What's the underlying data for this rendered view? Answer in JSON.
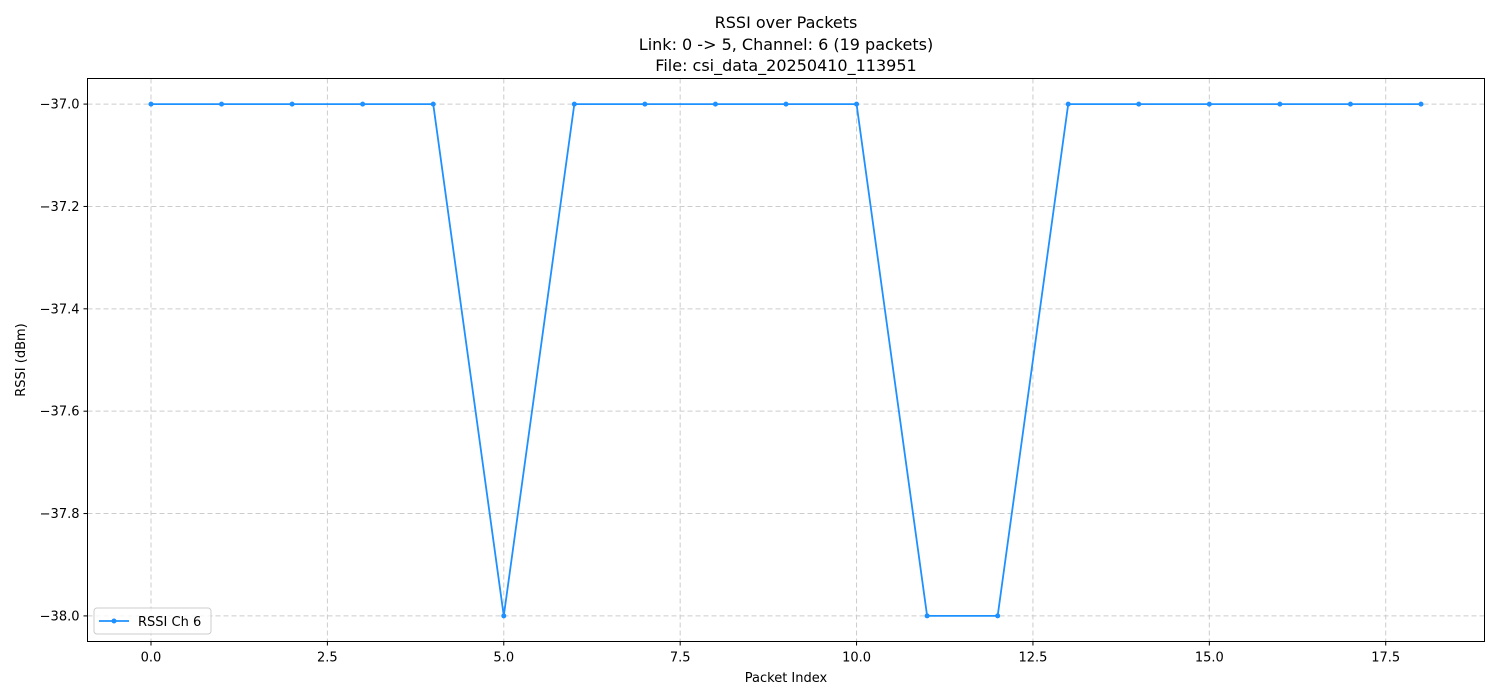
{
  "chart_data": {
    "type": "line",
    "title_lines": [
      "RSSI over Packets",
      "Link: 0 -> 5, Channel: 6 (19 packets)",
      "File: csi_data_20250410_113951"
    ],
    "xlabel": "Packet Index",
    "ylabel": "RSSI (dBm)",
    "xlim": [
      -0.9,
      18.9
    ],
    "ylim": [
      -38.05,
      -36.95
    ],
    "x_ticks": [
      0.0,
      2.5,
      5.0,
      7.5,
      10.0,
      12.5,
      15.0,
      17.5
    ],
    "x_tick_labels": [
      "0.0",
      "2.5",
      "5.0",
      "7.5",
      "10.0",
      "12.5",
      "15.0",
      "17.5"
    ],
    "y_ticks": [
      -37.0,
      -37.2,
      -37.4,
      -37.6,
      -37.8,
      -38.0
    ],
    "y_tick_labels": [
      "−37.0",
      "−37.2",
      "−37.4",
      "−37.6",
      "−37.8",
      "−38.0"
    ],
    "grid": true,
    "legend_position": "lower-left",
    "series": [
      {
        "name": "RSSI Ch 6",
        "color": "#1e90ff",
        "marker": "circle",
        "x": [
          0,
          1,
          2,
          3,
          4,
          5,
          6,
          7,
          8,
          9,
          10,
          11,
          12,
          13,
          14,
          15,
          16,
          17,
          18
        ],
        "y": [
          -37,
          -37,
          -37,
          -37,
          -37,
          -38,
          -37,
          -37,
          -37,
          -37,
          -37,
          -38,
          -38,
          -37,
          -37,
          -37,
          -37,
          -37,
          -37
        ]
      }
    ]
  }
}
